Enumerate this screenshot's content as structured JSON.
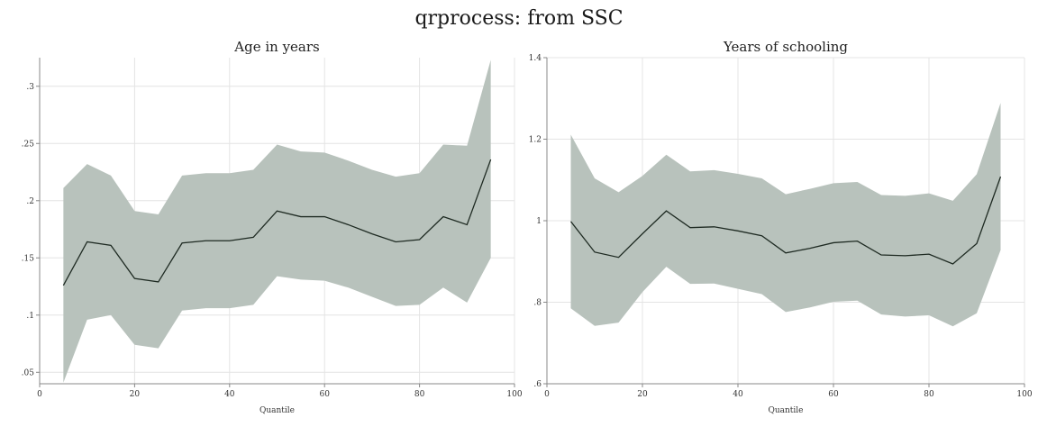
{
  "figure": {
    "title": "qrprocess: from SSC"
  },
  "chart_data": [
    {
      "type": "area",
      "title": "Age in years",
      "xlabel": "Quantile",
      "ylabel": "",
      "xlim": [
        0,
        100
      ],
      "ylim": [
        0.04,
        0.325
      ],
      "xticks": [
        0,
        20,
        40,
        60,
        80,
        100
      ],
      "xtick_labels": [
        "0",
        "20",
        "40",
        "60",
        "80",
        "100"
      ],
      "yticks": [
        0.05,
        0.1,
        0.15,
        0.2,
        0.25,
        0.3
      ],
      "ytick_labels": [
        ".05",
        ".1",
        ".15",
        ".2",
        ".25",
        ".3"
      ],
      "grid": true,
      "x": [
        5,
        10,
        15,
        20,
        25,
        30,
        35,
        40,
        45,
        50,
        55,
        60,
        65,
        70,
        75,
        80,
        85,
        90,
        95
      ],
      "series": [
        {
          "values": [
            0.126,
            0.164,
            0.161,
            0.132,
            0.129,
            0.163,
            0.165,
            0.165,
            0.168,
            0.191,
            0.186,
            0.186,
            0.179,
            0.171,
            0.164,
            0.166,
            0.186,
            0.179,
            0.236
          ]
        }
      ],
      "band": {
        "lower": [
          0.041,
          0.096,
          0.1,
          0.074,
          0.071,
          0.104,
          0.106,
          0.106,
          0.109,
          0.134,
          0.131,
          0.13,
          0.124,
          0.116,
          0.108,
          0.109,
          0.124,
          0.111,
          0.15
        ],
        "upper": [
          0.211,
          0.232,
          0.222,
          0.191,
          0.188,
          0.222,
          0.224,
          0.224,
          0.227,
          0.249,
          0.243,
          0.242,
          0.235,
          0.227,
          0.221,
          0.224,
          0.249,
          0.248,
          0.323
        ]
      },
      "colors": {
        "band": "#b8c2bc",
        "line": "#1e2a22",
        "grid": "#e4e4e4",
        "axis": "#888888"
      }
    },
    {
      "type": "area",
      "title": "Years of schooling",
      "xlabel": "Quantile",
      "ylabel": "",
      "xlim": [
        0,
        100
      ],
      "ylim": [
        0.6,
        1.4
      ],
      "xticks": [
        0,
        20,
        40,
        60,
        80,
        100
      ],
      "xtick_labels": [
        "0",
        "20",
        "40",
        "60",
        "80",
        "100"
      ],
      "yticks": [
        0.6,
        0.8,
        1.0,
        1.2,
        1.4
      ],
      "ytick_labels": [
        ".6",
        ".8",
        "1",
        "1.2",
        "1.4"
      ],
      "grid": true,
      "x": [
        5,
        10,
        15,
        20,
        25,
        30,
        35,
        40,
        45,
        50,
        55,
        60,
        65,
        70,
        75,
        80,
        85,
        90,
        95
      ],
      "series": [
        {
          "values": [
            0.998,
            0.923,
            0.91,
            0.968,
            1.024,
            0.983,
            0.985,
            0.975,
            0.963,
            0.921,
            0.932,
            0.946,
            0.95,
            0.916,
            0.914,
            0.918,
            0.894,
            0.944,
            1.108
          ]
        }
      ],
      "band": {
        "lower": [
          0.785,
          0.742,
          0.75,
          0.825,
          0.887,
          0.845,
          0.846,
          0.833,
          0.82,
          0.776,
          0.787,
          0.801,
          0.804,
          0.77,
          0.765,
          0.768,
          0.741,
          0.773,
          0.928
        ],
        "upper": [
          1.211,
          1.104,
          1.07,
          1.11,
          1.162,
          1.121,
          1.124,
          1.115,
          1.104,
          1.065,
          1.078,
          1.092,
          1.095,
          1.063,
          1.061,
          1.067,
          1.049,
          1.114,
          1.289
        ]
      },
      "colors": {
        "band": "#b8c2bc",
        "line": "#1e2a22",
        "grid": "#e4e4e4",
        "axis": "#888888"
      }
    }
  ]
}
